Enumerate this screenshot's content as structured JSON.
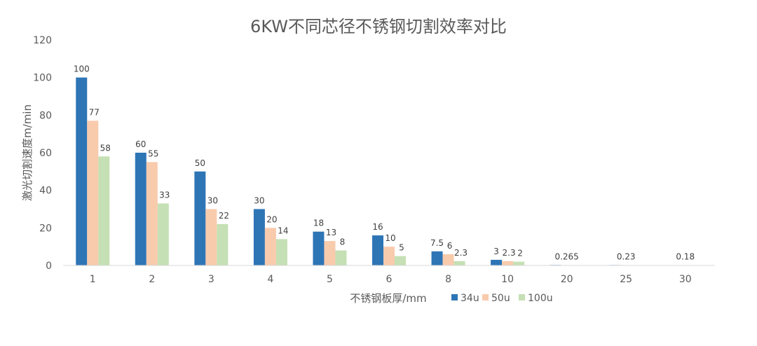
{
  "chart_data": {
    "type": "bar",
    "title": "6KW不同芯径不锈钢切割效率对比",
    "xlabel": "不锈钢板厚/mm",
    "ylabel": "激光切割速度m/min",
    "ylim": [
      0,
      120
    ],
    "yticks": [
      0,
      20,
      40,
      60,
      80,
      100,
      120
    ],
    "categories": [
      "1",
      "2",
      "3",
      "4",
      "5",
      "6",
      "8",
      "10",
      "20",
      "25",
      "30"
    ],
    "legend_position": "bottom",
    "series": [
      {
        "name": "34u",
        "color": "#2E75B6",
        "values": [
          100,
          60,
          50,
          30,
          18,
          16,
          7.5,
          3,
          0.265,
          0.23,
          0.18
        ],
        "labels": [
          "100",
          "60",
          "50",
          "30",
          "18",
          "16",
          "7.5",
          "3",
          "0.265",
          "0.23",
          "0.18"
        ]
      },
      {
        "name": "50u",
        "color": "#F8CBAD",
        "values": [
          77,
          55,
          30,
          20,
          13,
          10,
          6,
          2.3,
          null,
          null,
          null
        ],
        "labels": [
          "77",
          "55",
          "30",
          "20",
          "13",
          "10",
          "6",
          "2.3",
          "",
          "",
          ""
        ]
      },
      {
        "name": "100u",
        "color": "#C5E0B4",
        "values": [
          58,
          33,
          22,
          14,
          8,
          5,
          2.3,
          2,
          null,
          null,
          null
        ],
        "labels": [
          "58",
          "33",
          "22",
          "14",
          "8",
          "5",
          "2.3",
          "2",
          "",
          "",
          ""
        ]
      }
    ]
  }
}
